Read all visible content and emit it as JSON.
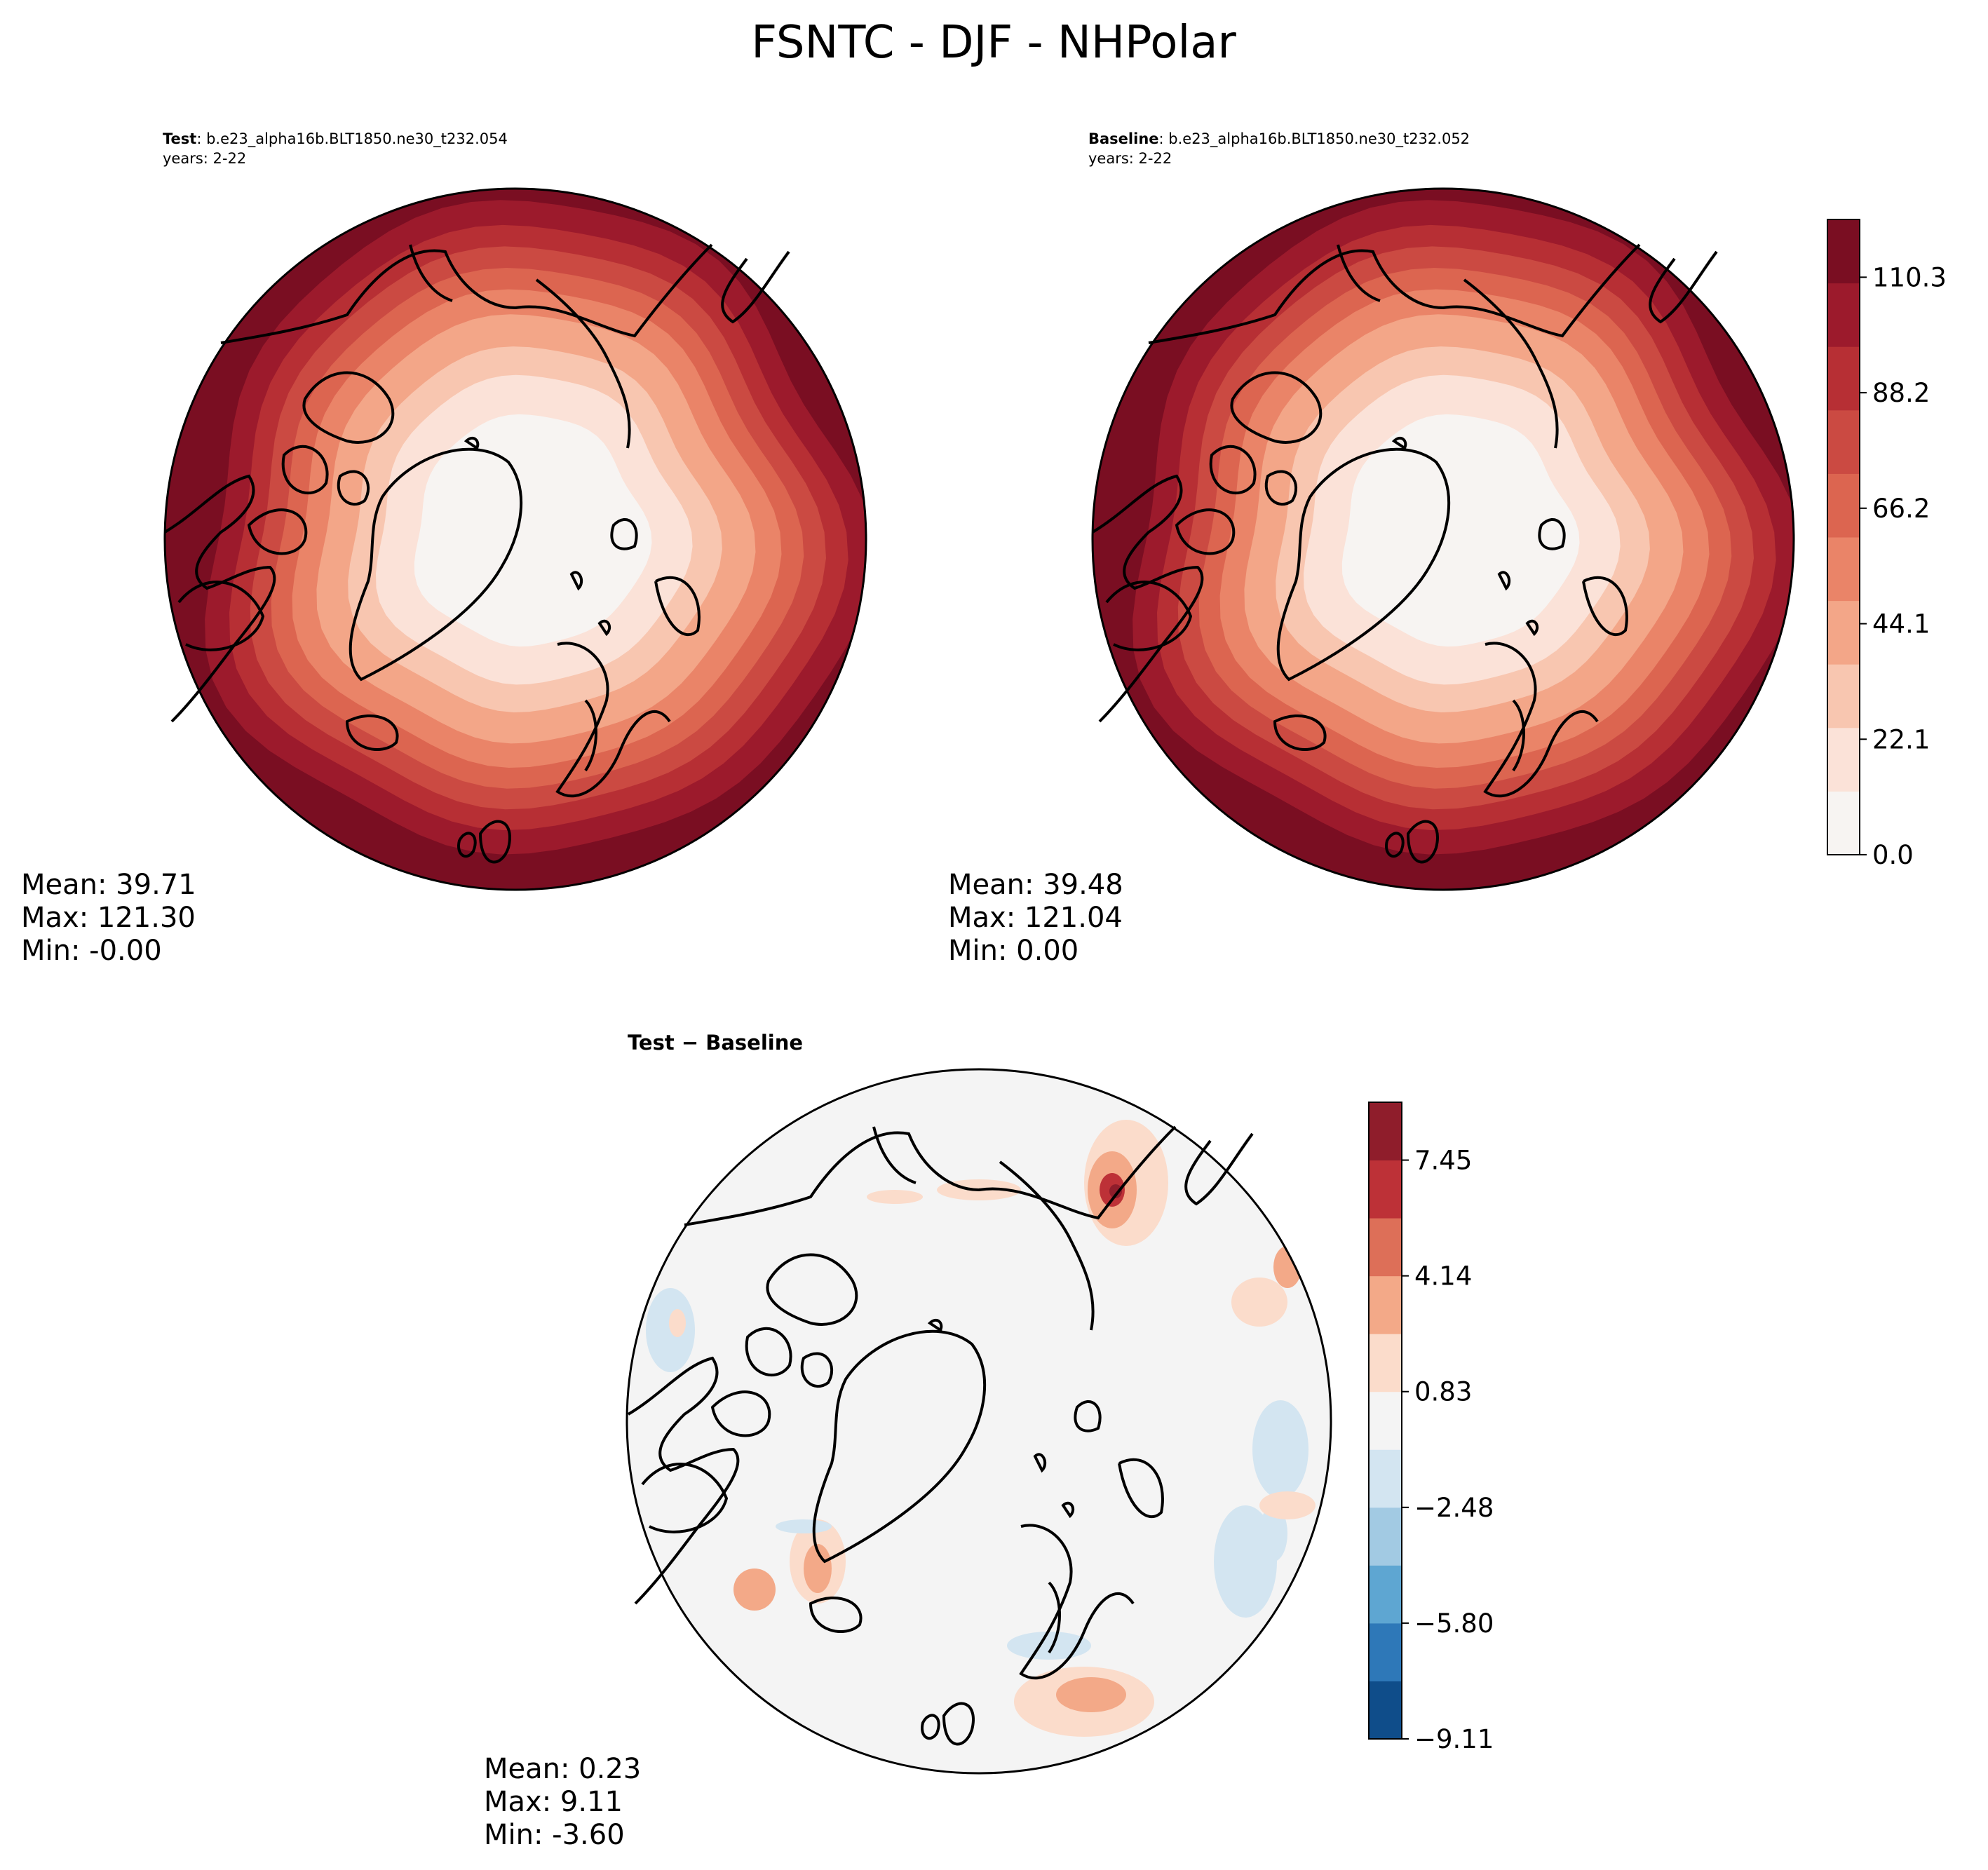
{
  "page_title": "FSNTC - DJF - NHPolar",
  "colors": {
    "test_baseline_levels": [
      "#f7f4f2",
      "#fbe2d8",
      "#f8c6b0",
      "#f3a688",
      "#ea8468",
      "#dc6550",
      "#cb4a42",
      "#b72f34",
      "#9c1a2c",
      "#7a0e22"
    ],
    "diff_levels": [
      "#0f4d8a",
      "#2e78b8",
      "#5ea6d2",
      "#a2cae3",
      "#d3e5f1",
      "#f4f4f4",
      "#fbdccb",
      "#f3a988",
      "#dd6f58",
      "#bd3137",
      "#8f1d2b"
    ],
    "coastline": "#000000",
    "map_border": "#000000"
  },
  "panels": {
    "test": {
      "header_bold": "Test",
      "header_rest": ": b.e23_alpha16b.BLT1850.ne30_t232.054",
      "years": "years: 2-22",
      "stats": [
        "Mean: 39.71",
        "Max: 121.30",
        "Min: -0.00"
      ]
    },
    "baseline": {
      "header_bold": "Baseline",
      "header_rest": ": b.e23_alpha16b.BLT1850.ne30_t232.052",
      "years": "years: 2-22",
      "stats": [
        "Mean: 39.48",
        "Max: 121.04",
        "Min:  0.00"
      ]
    },
    "diff": {
      "header": "Test − Baseline",
      "stats": [
        "Mean:  0.23",
        "Max:  9.11",
        "Min: -3.60"
      ]
    }
  },
  "colorbars": {
    "main": [
      "0.0",
      "22.1",
      "44.1",
      "66.2",
      "88.2",
      "110.3"
    ],
    "diff": [
      "−9.11",
      "−5.80",
      "−2.48",
      "0.83",
      "4.14",
      "7.45"
    ]
  },
  "chart_data": [
    {
      "type": "heatmap",
      "title": "Test",
      "projection": "north polar stereographic",
      "field": "FSNTC",
      "season": "DJF",
      "region": "NHPolar",
      "case": "b.e23_alpha16b.BLT1850.ne30_t232.054",
      "years": "2-22",
      "stats": {
        "mean": 39.71,
        "max": 121.3,
        "min": -0.0
      },
      "contour_levels": [
        0.0,
        11.0,
        22.1,
        33.1,
        44.1,
        55.2,
        66.2,
        77.2,
        88.2,
        99.3,
        110.3,
        121.3
      ],
      "colorbar_ticks": [
        0.0,
        22.1,
        44.1,
        66.2,
        88.2,
        110.3
      ]
    },
    {
      "type": "heatmap",
      "title": "Baseline",
      "projection": "north polar stereographic",
      "field": "FSNTC",
      "season": "DJF",
      "region": "NHPolar",
      "case": "b.e23_alpha16b.BLT1850.ne30_t232.052",
      "years": "2-22",
      "stats": {
        "mean": 39.48,
        "max": 121.04,
        "min": 0.0
      },
      "contour_levels": [
        0.0,
        11.0,
        22.1,
        33.1,
        44.1,
        55.2,
        66.2,
        77.2,
        88.2,
        99.3,
        110.3,
        121.3
      ],
      "colorbar_ticks": [
        0.0,
        22.1,
        44.1,
        66.2,
        88.2,
        110.3
      ]
    },
    {
      "type": "heatmap",
      "title": "Test − Baseline",
      "projection": "north polar stereographic",
      "stats": {
        "mean": 0.23,
        "max": 9.11,
        "min": -3.6
      },
      "contour_levels": [
        -9.11,
        -7.45,
        -5.8,
        -4.14,
        -2.48,
        -0.83,
        0.83,
        2.48,
        4.14,
        5.8,
        7.45,
        9.11
      ],
      "colorbar_ticks": [
        -9.11,
        -5.8,
        -2.48,
        0.83,
        4.14,
        7.45
      ]
    }
  ]
}
